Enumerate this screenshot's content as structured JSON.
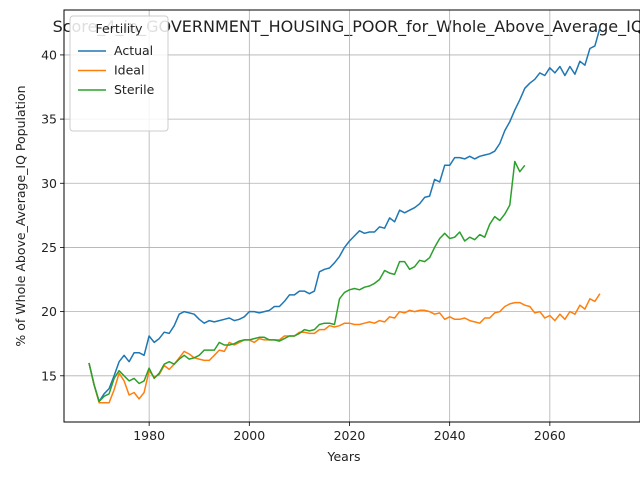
{
  "chart_data": {
    "type": "line",
    "title": "Score_4_in_GOVERNMENT_HOUSING_POOR_for_Whole_Above_Average_IQ",
    "xlabel": "Years",
    "ylabel": "% of Whole Above_Average_IQ Population",
    "xlim": [
      1963,
      2078
    ],
    "ylim": [
      11.4,
      43.5
    ],
    "xticks": [
      1980,
      2000,
      2020,
      2040,
      2060
    ],
    "yticks": [
      15,
      20,
      25,
      30,
      35,
      40
    ],
    "grid": true,
    "legend": {
      "title": "Fertility",
      "placement": "top-left"
    },
    "series": [
      {
        "name": "Actual",
        "color": "#1f77b4",
        "x": [
          1968,
          1969,
          1970,
          1971,
          1972,
          1973,
          1974,
          1975,
          1976,
          1977,
          1978,
          1979,
          1980,
          1981,
          1982,
          1983,
          1984,
          1985,
          1986,
          1987,
          1988,
          1989,
          1990,
          1991,
          1992,
          1993,
          1994,
          1995,
          1996,
          1997,
          1998,
          1999,
          2000,
          2001,
          2002,
          2003,
          2004,
          2005,
          2006,
          2007,
          2008,
          2009,
          2010,
          2011,
          2012,
          2013,
          2014,
          2015,
          2016,
          2017,
          2018,
          2019,
          2020,
          2021,
          2022,
          2023,
          2024,
          2025,
          2026,
          2027,
          2028,
          2029,
          2030,
          2031,
          2032,
          2033,
          2034,
          2035,
          2036,
          2037,
          2038,
          2039,
          2040,
          2041,
          2042,
          2043,
          2044,
          2045,
          2046,
          2047,
          2048,
          2049,
          2050,
          2051,
          2052,
          2053,
          2054,
          2055,
          2056,
          2057,
          2058,
          2059,
          2060,
          2061,
          2062,
          2063,
          2064,
          2065,
          2066,
          2067,
          2068,
          2069,
          2070
        ],
        "values": [
          16.0,
          14.3,
          13.0,
          13.6,
          14.0,
          15.0,
          16.1,
          16.6,
          16.1,
          16.8,
          16.8,
          16.6,
          18.1,
          17.6,
          17.9,
          18.4,
          18.3,
          18.9,
          19.8,
          20.0,
          19.9,
          19.8,
          19.4,
          19.1,
          19.3,
          19.2,
          19.3,
          19.4,
          19.5,
          19.3,
          19.4,
          19.6,
          20.0,
          20.0,
          19.9,
          20.0,
          20.1,
          20.4,
          20.4,
          20.8,
          21.3,
          21.3,
          21.6,
          21.6,
          21.4,
          21.6,
          23.1,
          23.3,
          23.4,
          23.8,
          24.3,
          25.0,
          25.5,
          25.9,
          26.3,
          26.1,
          26.2,
          26.2,
          26.6,
          26.5,
          27.3,
          27.0,
          27.9,
          27.7,
          27.9,
          28.1,
          28.4,
          28.9,
          29.0,
          30.3,
          30.1,
          31.4,
          31.4,
          32.0,
          32.0,
          31.9,
          32.1,
          31.9,
          32.1,
          32.2,
          32.3,
          32.5,
          33.1,
          34.1,
          34.8,
          35.7,
          36.5,
          37.4,
          37.8,
          38.1,
          38.6,
          38.4,
          39.0,
          38.6,
          39.1,
          38.4,
          39.1,
          38.5,
          39.5,
          39.2,
          40.5,
          40.7,
          42.1
        ]
      },
      {
        "name": "Ideal",
        "color": "#ff7f0e",
        "x": [
          1968,
          1969,
          1970,
          1971,
          1972,
          1973,
          1974,
          1975,
          1976,
          1977,
          1978,
          1979,
          1980,
          1981,
          1982,
          1983,
          1984,
          1985,
          1986,
          1987,
          1988,
          1989,
          1990,
          1991,
          1992,
          1993,
          1994,
          1995,
          1996,
          1997,
          1998,
          1999,
          2000,
          2001,
          2002,
          2003,
          2004,
          2005,
          2006,
          2007,
          2008,
          2009,
          2010,
          2011,
          2012,
          2013,
          2014,
          2015,
          2016,
          2017,
          2018,
          2019,
          2020,
          2021,
          2022,
          2023,
          2024,
          2025,
          2026,
          2027,
          2028,
          2029,
          2030,
          2031,
          2032,
          2033,
          2034,
          2035,
          2036,
          2037,
          2038,
          2039,
          2040,
          2041,
          2042,
          2043,
          2044,
          2045,
          2046,
          2047,
          2048,
          2049,
          2050,
          2051,
          2052,
          2053,
          2054,
          2055,
          2056,
          2057,
          2058,
          2059,
          2060,
          2061,
          2062,
          2063,
          2064,
          2065,
          2066,
          2067,
          2068,
          2069,
          2070
        ],
        "values": [
          16.0,
          14.3,
          12.9,
          12.9,
          12.9,
          13.9,
          15.2,
          14.6,
          13.5,
          13.7,
          13.2,
          13.7,
          15.4,
          14.9,
          15.1,
          15.8,
          15.5,
          15.9,
          16.4,
          16.9,
          16.7,
          16.4,
          16.3,
          16.2,
          16.2,
          16.6,
          17.0,
          16.9,
          17.6,
          17.4,
          17.6,
          17.8,
          17.8,
          17.6,
          17.9,
          17.8,
          17.8,
          17.8,
          17.8,
          18.1,
          18.1,
          18.1,
          18.4,
          18.4,
          18.3,
          18.3,
          18.6,
          18.6,
          18.9,
          18.8,
          18.9,
          19.1,
          19.1,
          19.0,
          19.0,
          19.1,
          19.2,
          19.1,
          19.3,
          19.2,
          19.6,
          19.5,
          20.0,
          19.9,
          20.1,
          20.0,
          20.1,
          20.1,
          20.0,
          19.8,
          19.9,
          19.4,
          19.6,
          19.4,
          19.4,
          19.5,
          19.3,
          19.2,
          19.1,
          19.5,
          19.5,
          19.9,
          20.0,
          20.4,
          20.6,
          20.7,
          20.7,
          20.5,
          20.4,
          19.9,
          20.0,
          19.5,
          19.7,
          19.3,
          19.8,
          19.4,
          20.0,
          19.8,
          20.5,
          20.2,
          21.0,
          20.8,
          21.4
        ]
      },
      {
        "name": "Sterile",
        "color": "#2ca02c",
        "x": [
          1968,
          1969,
          1970,
          1971,
          1972,
          1973,
          1974,
          1975,
          1976,
          1977,
          1978,
          1979,
          1980,
          1981,
          1982,
          1983,
          1984,
          1985,
          1986,
          1987,
          1988,
          1989,
          1990,
          1991,
          1992,
          1993,
          1994,
          1995,
          1996,
          1997,
          1998,
          1999,
          2000,
          2001,
          2002,
          2003,
          2004,
          2005,
          2006,
          2007,
          2008,
          2009,
          2010,
          2011,
          2012,
          2013,
          2014,
          2015,
          2016,
          2017,
          2018,
          2019,
          2020,
          2021,
          2022,
          2023,
          2024,
          2025,
          2026,
          2027,
          2028,
          2029,
          2030,
          2031,
          2032,
          2033,
          2034,
          2035,
          2036,
          2037,
          2038,
          2039,
          2040,
          2041,
          2042,
          2043,
          2044,
          2045,
          2046,
          2047,
          2048,
          2049,
          2050,
          2051,
          2052,
          2053,
          2054,
          2055
        ],
        "values": [
          16.0,
          14.3,
          13.0,
          13.4,
          13.6,
          14.8,
          15.4,
          15.0,
          14.6,
          14.8,
          14.4,
          14.6,
          15.6,
          14.8,
          15.2,
          15.9,
          16.1,
          15.9,
          16.3,
          16.6,
          16.3,
          16.4,
          16.6,
          17.0,
          17.0,
          17.0,
          17.6,
          17.4,
          17.4,
          17.5,
          17.7,
          17.8,
          17.8,
          17.9,
          18.0,
          18.0,
          17.8,
          17.8,
          17.7,
          17.9,
          18.1,
          18.1,
          18.3,
          18.6,
          18.5,
          18.6,
          19.0,
          19.1,
          19.1,
          19.0,
          21.0,
          21.5,
          21.7,
          21.8,
          21.7,
          21.9,
          22.0,
          22.2,
          22.5,
          23.2,
          23.0,
          22.9,
          23.9,
          23.9,
          23.3,
          23.5,
          24.0,
          23.9,
          24.2,
          25.0,
          25.7,
          26.1,
          25.7,
          25.8,
          26.2,
          25.5,
          25.8,
          25.6,
          26.0,
          25.8,
          26.8,
          27.4,
          27.1,
          27.6,
          28.3,
          31.7,
          30.9,
          31.4
        ]
      }
    ]
  }
}
